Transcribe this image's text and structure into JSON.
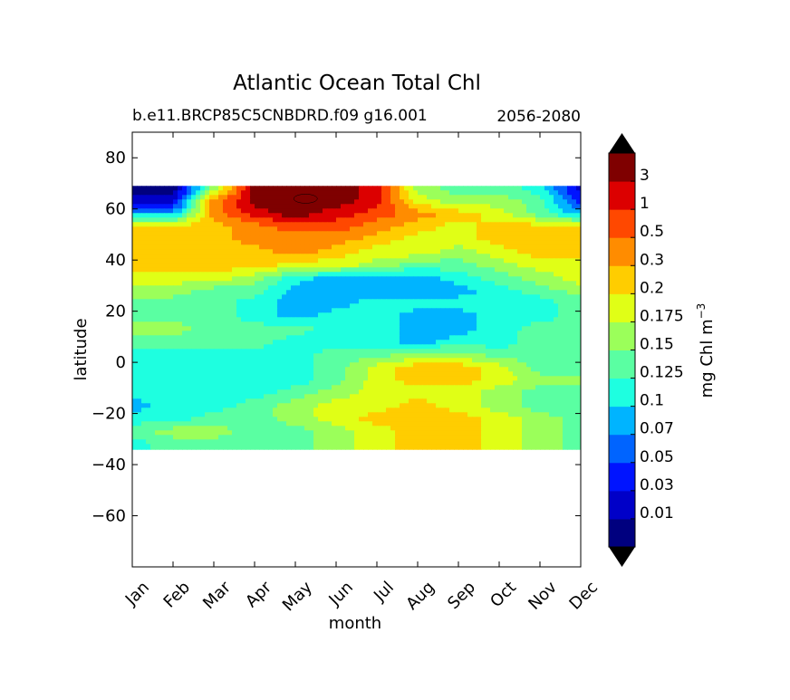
{
  "chart_data": {
    "type": "contourf",
    "title": "Atlantic Ocean Total Chl",
    "subtitle_left": "b.e11.BRCP85C5CNBDRD.f09 g16.001",
    "subtitle_right": "2056-2080",
    "xlabel": "month",
    "ylabel": "latitude",
    "x_categories": [
      "Jan",
      "Feb",
      "Mar",
      "Apr",
      "May",
      "Jun",
      "Jul",
      "Aug",
      "Sep",
      "Oct",
      "Nov",
      "Dec"
    ],
    "ylim": [
      -80,
      90
    ],
    "yticks": [
      -60,
      -40,
      -20,
      0,
      20,
      40,
      60,
      80
    ],
    "ytick_labels": [
      "−60",
      "−40",
      "−20",
      "0",
      "20",
      "40",
      "60",
      "80"
    ],
    "data_lat_range": [
      -34,
      69
    ],
    "colorbar": {
      "label": "mg Chl m",
      "label_exp": "−3",
      "levels": [
        "0.01",
        "0.03",
        "0.05",
        "0.07",
        "0.1",
        "0.125",
        "0.15",
        "0.175",
        "0.2",
        "0.3",
        "0.5",
        "1",
        "3"
      ],
      "colors": [
        "#00007f",
        "#0000c8",
        "#0014ff",
        "#0064ff",
        "#00b4ff",
        "#1effe0",
        "#5affa2",
        "#9bff5a",
        "#e0ff16",
        "#ffcd00",
        "#ff8c00",
        "#ff4800",
        "#dc0000",
        "#7f0000"
      ]
    },
    "lat_grid": [
      68,
      63,
      58,
      53,
      48,
      43,
      38,
      33,
      28,
      23,
      18,
      13,
      8,
      3,
      -2,
      -7,
      -12,
      -17,
      -22,
      -27,
      -32
    ],
    "values": [
      [
        0,
        0,
        7,
        13,
        13,
        13,
        12,
        7,
        6,
        6,
        5,
        1
      ],
      [
        1,
        1,
        10,
        13,
        13,
        13,
        12,
        8,
        7,
        7,
        6,
        2
      ],
      [
        4,
        4,
        10,
        12,
        13,
        12,
        11,
        10,
        9,
        8,
        6,
        4
      ],
      [
        9,
        9,
        9,
        10,
        11,
        11,
        10,
        9,
        8,
        9,
        9,
        9
      ],
      [
        9,
        9,
        9,
        10,
        10,
        10,
        9,
        8,
        8,
        9,
        9,
        9
      ],
      [
        9,
        9,
        9,
        9,
        10,
        9,
        8,
        8,
        7,
        8,
        9,
        9
      ],
      [
        9,
        9,
        9,
        9,
        8,
        8,
        7,
        6,
        6,
        7,
        8,
        8
      ],
      [
        8,
        8,
        8,
        7,
        5,
        4,
        4,
        4,
        5,
        6,
        7,
        8
      ],
      [
        7,
        7,
        6,
        6,
        4,
        4,
        4,
        4,
        4,
        5,
        6,
        7
      ],
      [
        6,
        6,
        6,
        5,
        4,
        4,
        5,
        5,
        5,
        5,
        5,
        6
      ],
      [
        6,
        6,
        6,
        5,
        4,
        5,
        5,
        4,
        4,
        5,
        5,
        6
      ],
      [
        7,
        7,
        6,
        6,
        6,
        5,
        5,
        4,
        4,
        5,
        6,
        6
      ],
      [
        6,
        6,
        6,
        6,
        5,
        5,
        5,
        4,
        5,
        5,
        6,
        6
      ],
      [
        5,
        5,
        5,
        5,
        5,
        6,
        6,
        7,
        7,
        6,
        6,
        6
      ],
      [
        5,
        5,
        5,
        5,
        5,
        6,
        8,
        9,
        9,
        8,
        6,
        6
      ],
      [
        5,
        5,
        5,
        5,
        5,
        6,
        8,
        9,
        9,
        8,
        7,
        7
      ],
      [
        5,
        5,
        5,
        5,
        6,
        7,
        8,
        8,
        8,
        7,
        6,
        6
      ],
      [
        4,
        5,
        5,
        6,
        7,
        8,
        8,
        9,
        8,
        7,
        6,
        6
      ],
      [
        5,
        5,
        6,
        6,
        7,
        8,
        9,
        9,
        9,
        8,
        7,
        6
      ],
      [
        6,
        7,
        7,
        6,
        6,
        7,
        8,
        9,
        9,
        8,
        7,
        6
      ],
      [
        5,
        6,
        6,
        6,
        6,
        7,
        8,
        9,
        9,
        8,
        7,
        6
      ]
    ]
  }
}
